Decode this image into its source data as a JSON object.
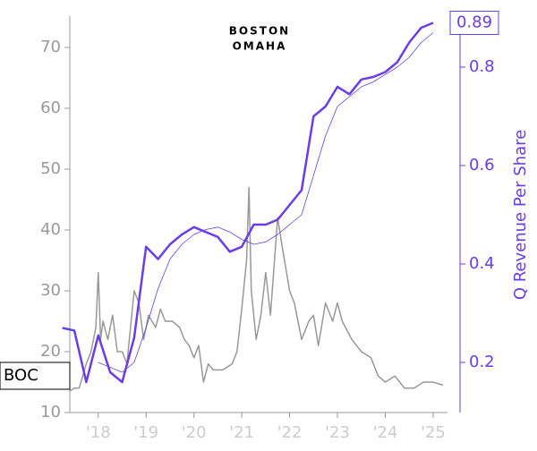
{
  "chart_data": {
    "type": "line",
    "title": [
      "BOSTON",
      "OMAHA"
    ],
    "y2label": "Q Revenue Per Share",
    "annotations": [
      "BOC"
    ],
    "xlim": [
      2017.2,
      2025.3
    ],
    "xticks": [
      {
        "value": 2018,
        "label": "'18"
      },
      {
        "value": 2019,
        "label": "'19"
      },
      {
        "value": 2020,
        "label": "'20"
      },
      {
        "value": 2021,
        "label": "'21"
      },
      {
        "value": 2022,
        "label": "'22"
      },
      {
        "value": 2023,
        "label": "'23"
      },
      {
        "value": 2024,
        "label": "'24"
      },
      {
        "value": 2025,
        "label": "'25"
      }
    ],
    "ylim": [
      10,
      75
    ],
    "yticks": [
      10,
      20,
      30,
      40,
      50,
      60,
      70
    ],
    "y2lim": [
      0.1,
      0.9
    ],
    "y2ticks": [
      0.2,
      0.4,
      0.6,
      0.8
    ],
    "series": [
      {
        "color": "#999999",
        "width": 1.5,
        "x": [
          2017.4,
          2017.5,
          2017.6,
          2017.75,
          2017.85,
          2017.95,
          2018.0,
          2018.05,
          2018.1,
          2018.2,
          2018.3,
          2018.4,
          2018.5,
          2018.6,
          2018.7,
          2018.75,
          2018.85,
          2018.95,
          2019.05,
          2019.2,
          2019.3,
          2019.4,
          2019.55,
          2019.7,
          2019.8,
          2019.9,
          2020.0,
          2020.1,
          2020.2,
          2020.3,
          2020.4,
          2020.6,
          2020.8,
          2020.9,
          2021.0,
          2021.1,
          2021.15,
          2021.2,
          2021.3,
          2021.4,
          2021.5,
          2021.6,
          2021.75,
          2021.85,
          2022.0,
          2022.1,
          2022.25,
          2022.4,
          2022.5,
          2022.6,
          2022.75,
          2022.9,
          2023.0,
          2023.1,
          2023.3,
          2023.5,
          2023.7,
          2023.85,
          2024.0,
          2024.2,
          2024.4,
          2024.6,
          2024.8,
          2025.0,
          2025.2
        ],
        "values": [
          13.5,
          14,
          14,
          18,
          20,
          24,
          33,
          22,
          25,
          22,
          26,
          20,
          20,
          18,
          26,
          30,
          28,
          22,
          26,
          24,
          27,
          25,
          25,
          24,
          22,
          21,
          19,
          21,
          15,
          18,
          17,
          17,
          18,
          20,
          27,
          35,
          47,
          30,
          22,
          26,
          33,
          26,
          42,
          37,
          30,
          28,
          22,
          25,
          26,
          21,
          28,
          25,
          28,
          25,
          22,
          20,
          19,
          16,
          15,
          16,
          14,
          14,
          15,
          15,
          14.5
        ]
      },
      {
        "color": "#6a3de8",
        "width": 2.5,
        "axis": "y2",
        "x": [
          2017.25,
          2017.5,
          2017.75,
          2018.0,
          2018.25,
          2018.5,
          2018.75,
          2019.0,
          2019.25,
          2019.5,
          2019.75,
          2020.0,
          2020.25,
          2020.5,
          2020.75,
          2021.0,
          2021.25,
          2021.5,
          2021.75,
          2022.0,
          2022.25,
          2022.5,
          2022.75,
          2023.0,
          2023.25,
          2023.5,
          2023.75,
          2024.0,
          2024.25,
          2024.5,
          2024.75,
          2025.0
        ],
        "values": [
          0.27,
          0.265,
          0.16,
          0.255,
          0.18,
          0.16,
          0.25,
          0.435,
          0.41,
          0.44,
          0.46,
          0.475,
          0.465,
          0.455,
          0.425,
          0.435,
          0.48,
          0.48,
          0.49,
          0.52,
          0.55,
          0.7,
          0.72,
          0.76,
          0.745,
          0.775,
          0.78,
          0.79,
          0.81,
          0.85,
          0.88,
          0.89
        ]
      },
      {
        "color": "#6a3de8",
        "width": 0.8,
        "axis": "y2",
        "x": [
          2018.0,
          2018.5,
          2018.75,
          2019.0,
          2019.25,
          2019.5,
          2019.75,
          2020.0,
          2020.25,
          2020.5,
          2020.75,
          2021.0,
          2021.25,
          2021.5,
          2021.75,
          2022.0,
          2022.25,
          2022.5,
          2022.75,
          2023.0,
          2023.25,
          2023.5,
          2023.75,
          2024.0,
          2024.25,
          2024.5,
          2024.75,
          2025.0
        ],
        "values": [
          0.2,
          0.18,
          0.2,
          0.27,
          0.35,
          0.41,
          0.44,
          0.46,
          0.47,
          0.475,
          0.465,
          0.45,
          0.44,
          0.445,
          0.46,
          0.48,
          0.5,
          0.58,
          0.66,
          0.72,
          0.74,
          0.76,
          0.77,
          0.785,
          0.8,
          0.82,
          0.85,
          0.87
        ]
      }
    ]
  }
}
